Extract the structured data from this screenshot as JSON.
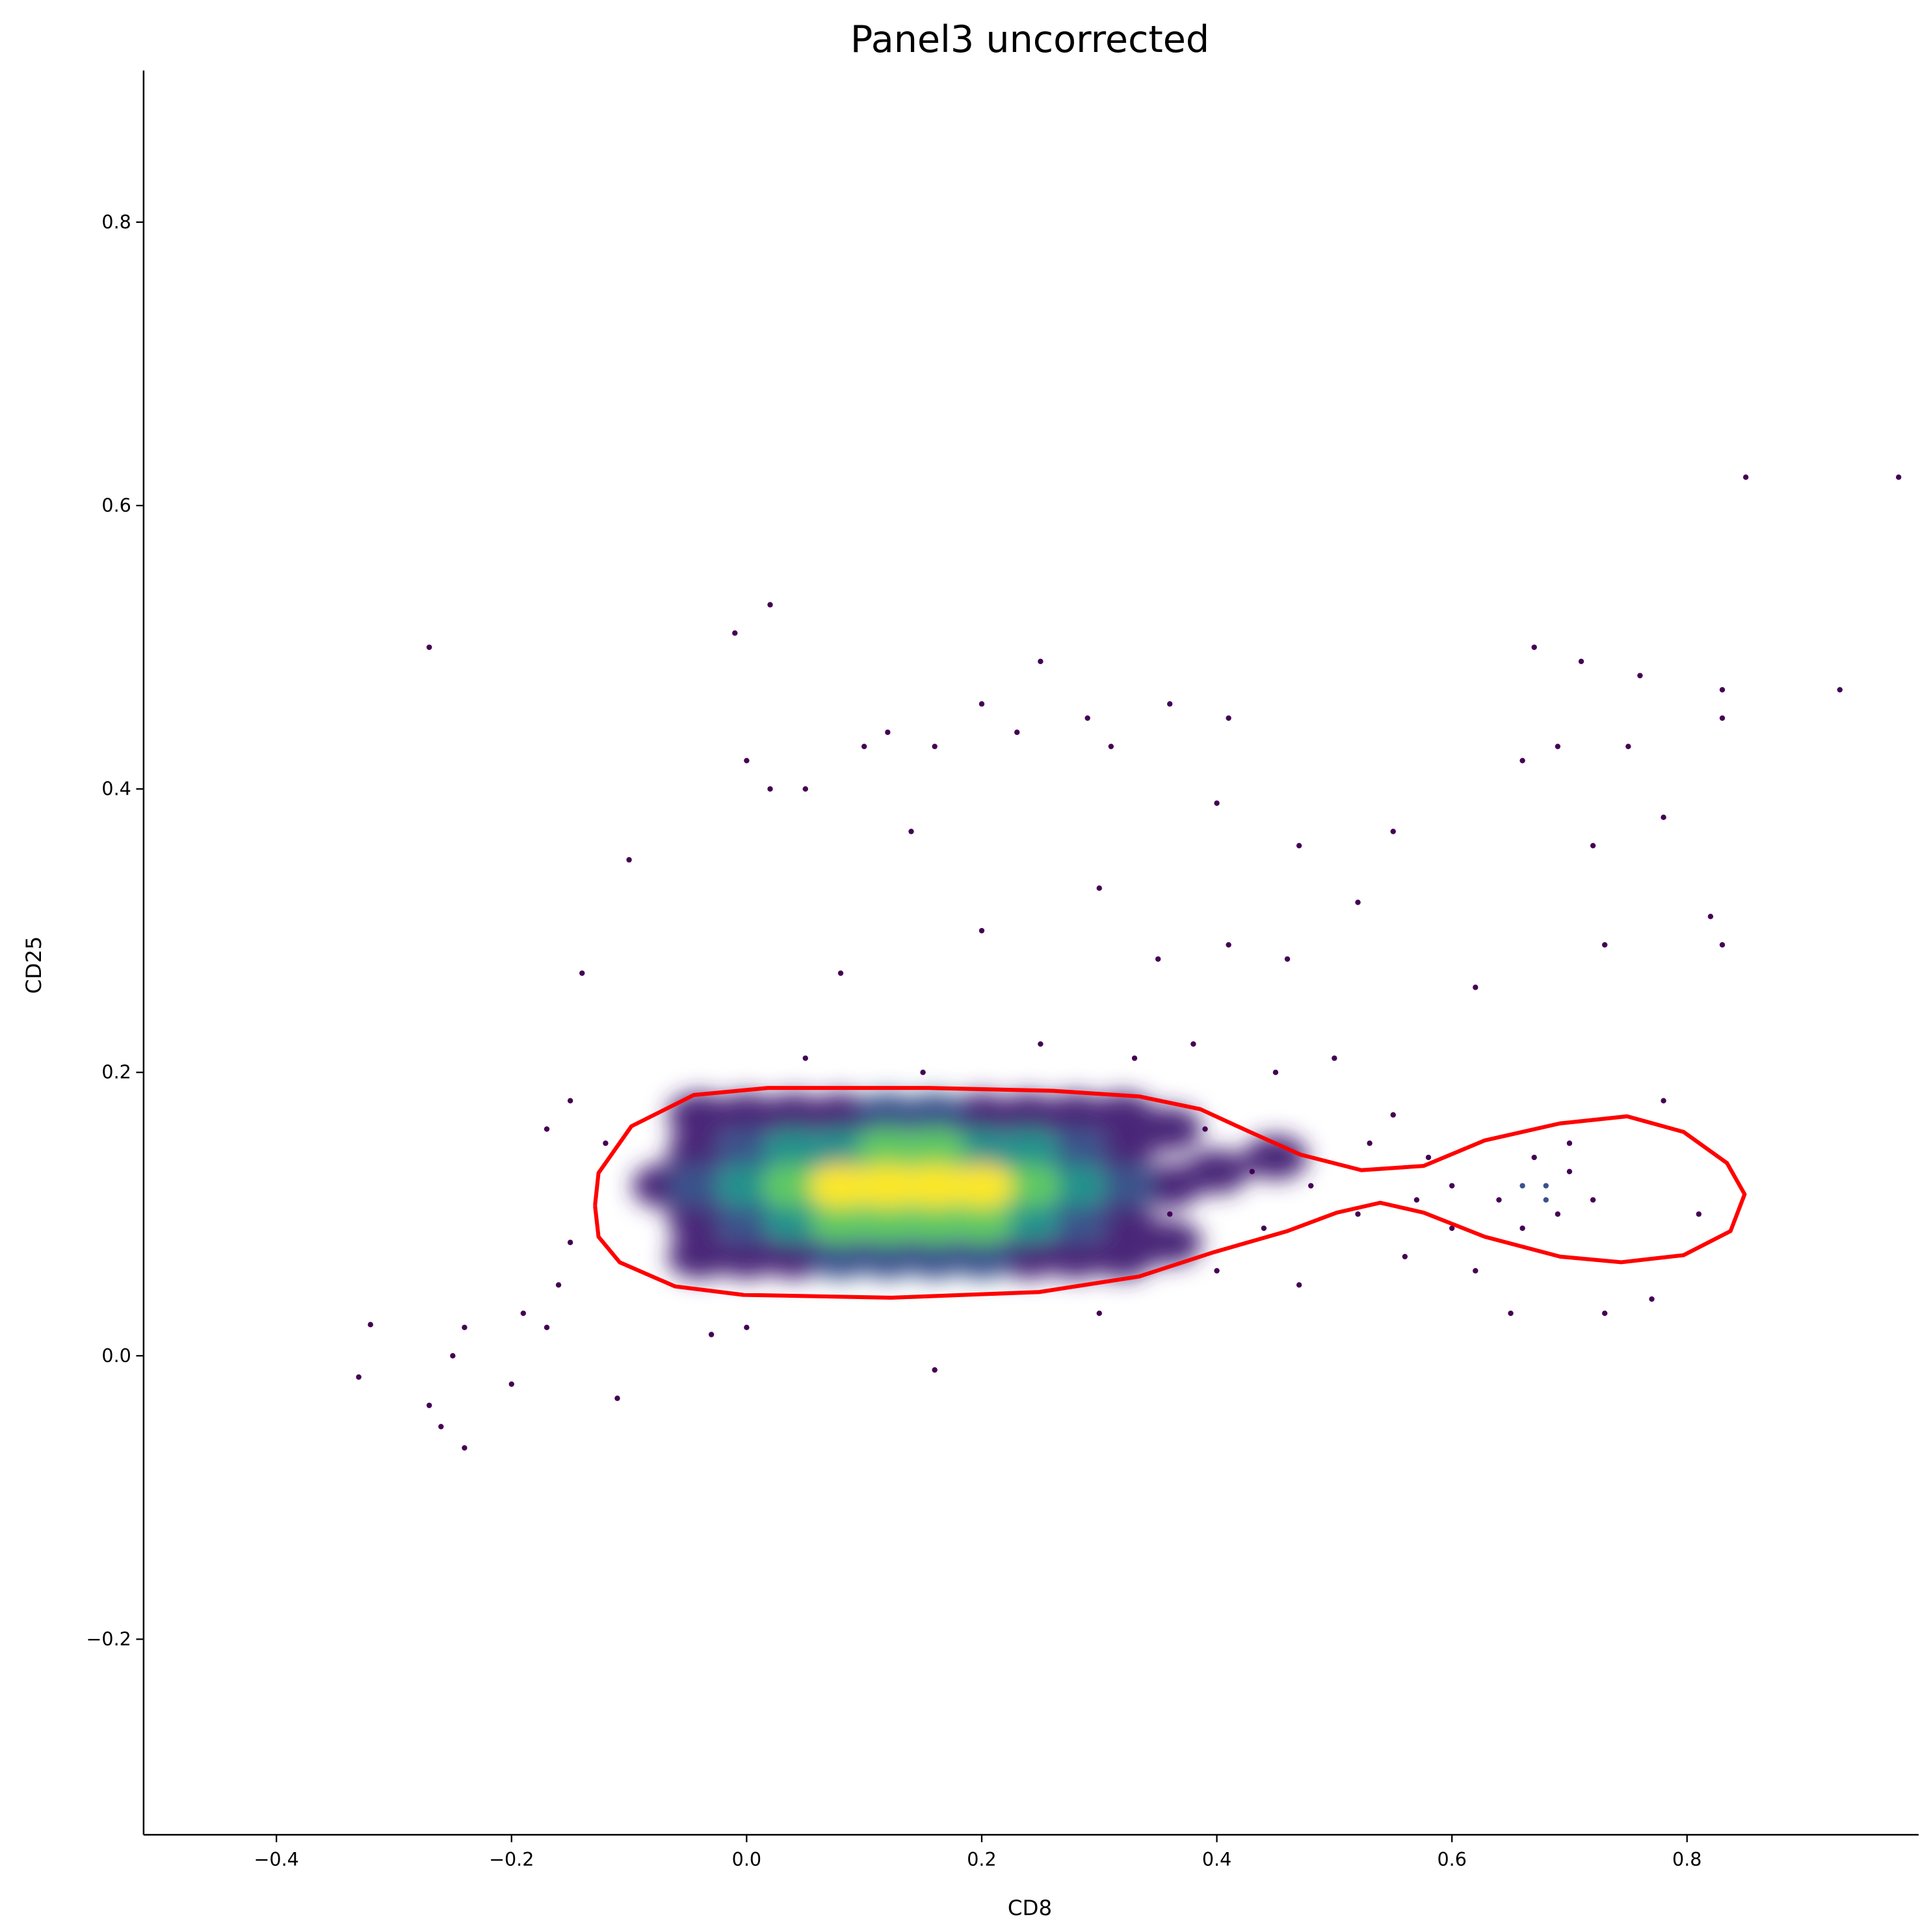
{
  "chart_data": {
    "type": "scatter",
    "title": "Panel3 uncorrected",
    "x_label": "CD8",
    "y_label": "CD25",
    "xlim": [
      -0.513,
      0.997
    ],
    "ylim": [
      -0.338,
      0.907
    ],
    "xticks": [
      {
        "value": -0.4,
        "label": "−0.4"
      },
      {
        "value": -0.2,
        "label": "−0.2"
      },
      {
        "value": 0,
        "label": "0.0"
      },
      0.2,
      0.4,
      0.6,
      0.8
    ],
    "yticks": [
      {
        "value": -0.2,
        "label": "−0.2"
      },
      {
        "value": 0,
        "label": "0.0"
      },
      0.2,
      0.4,
      0.6,
      0.8
    ],
    "points": [
      {
        "x": -0.27,
        "y": 0.5,
        "color": "#440154"
      },
      {
        "x": -0.01,
        "y": 0.51,
        "color": "#440154"
      },
      {
        "x": 0.02,
        "y": 0.53,
        "color": "#440154"
      },
      {
        "x": 0.25,
        "y": 0.49,
        "color": "#440154"
      },
      {
        "x": 0.85,
        "y": 0.62,
        "color": "#440154"
      },
      {
        "x": 0.98,
        "y": 0.62,
        "color": "#440154"
      },
      {
        "x": 0.93,
        "y": 0.47,
        "color": "#440154"
      },
      {
        "x": 0.83,
        "y": 0.47,
        "color": "#440154"
      },
      {
        "x": 0.83,
        "y": 0.45,
        "color": "#440154"
      },
      {
        "x": 0.67,
        "y": 0.5,
        "color": "#440154"
      },
      {
        "x": 0.71,
        "y": 0.49,
        "color": "#440154"
      },
      {
        "x": 0.76,
        "y": 0.48,
        "color": "#440154"
      },
      {
        "x": 0.2,
        "y": 0.46,
        "color": "#440154"
      },
      {
        "x": 0.36,
        "y": 0.46,
        "color": "#440154"
      },
      {
        "x": 0.41,
        "y": 0.45,
        "color": "#440154"
      },
      {
        "x": 0.29,
        "y": 0.45,
        "color": "#440154"
      },
      {
        "x": -0.1,
        "y": 0.35,
        "color": "#440154"
      },
      {
        "x": 0,
        "y": 0.42,
        "color": "#440154"
      },
      {
        "x": 0.02,
        "y": 0.4,
        "color": "#440154"
      },
      {
        "x": 0.05,
        "y": 0.4,
        "color": "#440154"
      },
      {
        "x": 0.1,
        "y": 0.43,
        "color": "#440154"
      },
      {
        "x": 0.12,
        "y": 0.44,
        "color": "#440154"
      },
      {
        "x": 0.16,
        "y": 0.43,
        "color": "#440154"
      },
      {
        "x": 0.23,
        "y": 0.44,
        "color": "#440154"
      },
      {
        "x": 0.31,
        "y": 0.43,
        "color": "#440154"
      },
      {
        "x": 0.4,
        "y": 0.39,
        "color": "#440154"
      },
      {
        "x": 0.47,
        "y": 0.36,
        "color": "#440154"
      },
      {
        "x": 0.55,
        "y": 0.37,
        "color": "#440154"
      },
      {
        "x": 0.66,
        "y": 0.42,
        "color": "#440154"
      },
      {
        "x": 0.69,
        "y": 0.43,
        "color": "#440154"
      },
      {
        "x": 0.75,
        "y": 0.43,
        "color": "#440154"
      },
      {
        "x": 0.78,
        "y": 0.38,
        "color": "#440154"
      },
      {
        "x": 0.72,
        "y": 0.36,
        "color": "#440154"
      },
      {
        "x": 0.14,
        "y": 0.37,
        "color": "#440154"
      },
      {
        "x": 0.3,
        "y": 0.33,
        "color": "#440154"
      },
      {
        "x": 0.08,
        "y": 0.27,
        "color": "#440154"
      },
      {
        "x": 0.2,
        "y": 0.3,
        "color": "#440154"
      },
      {
        "x": 0.35,
        "y": 0.28,
        "color": "#440154"
      },
      {
        "x": 0.41,
        "y": 0.29,
        "color": "#440154"
      },
      {
        "x": -0.14,
        "y": 0.27,
        "color": "#440154"
      },
      {
        "x": 0.62,
        "y": 0.26,
        "color": "#440154"
      },
      {
        "x": 0.73,
        "y": 0.29,
        "color": "#440154"
      },
      {
        "x": 0.83,
        "y": 0.29,
        "color": "#440154"
      },
      {
        "x": 0.82,
        "y": 0.31,
        "color": "#440154"
      },
      {
        "x": 0.52,
        "y": 0.32,
        "color": "#440154"
      },
      {
        "x": 0.46,
        "y": 0.28,
        "color": "#440154"
      },
      {
        "x": -0.33,
        "y": -0.015,
        "color": "#440154"
      },
      {
        "x": -0.32,
        "y": 0.022,
        "color": "#440154"
      },
      {
        "x": -0.27,
        "y": -0.035,
        "color": "#440154"
      },
      {
        "x": -0.26,
        "y": -0.05,
        "color": "#440154"
      },
      {
        "x": -0.24,
        "y": -0.065,
        "color": "#440154"
      },
      {
        "x": -0.25,
        "y": 0,
        "color": "#440154"
      },
      {
        "x": -0.24,
        "y": 0.02,
        "color": "#440154"
      },
      {
        "x": -0.2,
        "y": -0.02,
        "color": "#440154"
      },
      {
        "x": -0.19,
        "y": 0.03,
        "color": "#440154"
      },
      {
        "x": -0.17,
        "y": 0.02,
        "color": "#440154"
      },
      {
        "x": -0.16,
        "y": 0.05,
        "color": "#440154"
      },
      {
        "x": -0.15,
        "y": 0.08,
        "color": "#440154"
      },
      {
        "x": -0.11,
        "y": -0.03,
        "color": "#440154"
      },
      {
        "x": 0.16,
        "y": -0.01,
        "color": "#440154"
      },
      {
        "x": -0.17,
        "y": 0.16,
        "color": "#440154"
      },
      {
        "x": -0.15,
        "y": 0.18,
        "color": "#440154"
      },
      {
        "x": -0.12,
        "y": 0.15,
        "color": "#440154"
      },
      {
        "x": 0.05,
        "y": 0.21,
        "color": "#440154"
      },
      {
        "x": 0.15,
        "y": 0.2,
        "color": "#440154"
      },
      {
        "x": 0.25,
        "y": 0.22,
        "color": "#440154"
      },
      {
        "x": 0.33,
        "y": 0.21,
        "color": "#440154"
      },
      {
        "x": 0.38,
        "y": 0.22,
        "color": "#440154"
      },
      {
        "x": 0.45,
        "y": 0.2,
        "color": "#440154"
      },
      {
        "x": 0.5,
        "y": 0.21,
        "color": "#440154"
      },
      {
        "x": 0.55,
        "y": 0.17,
        "color": "#440154"
      },
      {
        "x": 0.58,
        "y": 0.14,
        "color": "#440154"
      },
      {
        "x": 0.6,
        "y": 0.12,
        "color": "#440154"
      },
      {
        "x": 0.52,
        "y": 0.1,
        "color": "#440154"
      },
      {
        "x": 0.56,
        "y": 0.07,
        "color": "#440154"
      },
      {
        "x": 0.62,
        "y": 0.06,
        "color": "#440154"
      },
      {
        "x": 0.47,
        "y": 0.05,
        "color": "#440154"
      },
      {
        "x": 0.4,
        "y": 0.06,
        "color": "#440154"
      },
      {
        "x": 0.3,
        "y": 0.03,
        "color": "#440154"
      },
      {
        "x": 0,
        "y": 0.02,
        "color": "#440154"
      },
      {
        "x": -0.03,
        "y": 0.015,
        "color": "#440154"
      },
      {
        "x": 0.43,
        "y": 0.13,
        "color": "#440154"
      },
      {
        "x": 0.48,
        "y": 0.12,
        "color": "#440154"
      },
      {
        "x": 0.53,
        "y": 0.15,
        "color": "#440154"
      },
      {
        "x": 0.57,
        "y": 0.11,
        "color": "#440154"
      },
      {
        "x": 0.6,
        "y": 0.09,
        "color": "#440154"
      },
      {
        "x": 0.65,
        "y": 0.03,
        "color": "#440154"
      },
      {
        "x": 0.73,
        "y": 0.03,
        "color": "#440154"
      },
      {
        "x": 0.77,
        "y": 0.04,
        "color": "#440154"
      },
      {
        "x": 0.81,
        "y": 0.1,
        "color": "#440154"
      },
      {
        "x": 0.78,
        "y": 0.18,
        "color": "#440154"
      },
      {
        "x": 0.44,
        "y": 0.09,
        "color": "#440154"
      },
      {
        "x": 0.36,
        "y": 0.1,
        "color": "#440154"
      },
      {
        "x": 0.39,
        "y": 0.16,
        "color": "#440154"
      },
      {
        "x": 0.66,
        "y": 0.12,
        "color": "#3b528b"
      },
      {
        "x": 0.68,
        "y": 0.11,
        "color": "#3b528b"
      },
      {
        "x": 0.7,
        "y": 0.13,
        "color": "#440154"
      },
      {
        "x": 0.67,
        "y": 0.14,
        "color": "#440154"
      },
      {
        "x": 0.69,
        "y": 0.1,
        "color": "#440154"
      },
      {
        "x": 0.64,
        "y": 0.11,
        "color": "#440154"
      },
      {
        "x": 0.72,
        "y": 0.11,
        "color": "#440154"
      },
      {
        "x": 0.66,
        "y": 0.09,
        "color": "#440154"
      },
      {
        "x": 0.7,
        "y": 0.15,
        "color": "#440154"
      },
      {
        "x": 0.68,
        "y": 0.12,
        "color": "#3b528b"
      }
    ],
    "core_points": [
      {
        "x": -0.07,
        "y": 0.12,
        "color": "#482878"
      },
      {
        "x": 0.36,
        "y": 0.12,
        "color": "#482878"
      },
      {
        "x": 0.4,
        "y": 0.13,
        "color": "#482878"
      },
      {
        "x": 0.36,
        "y": 0.08,
        "color": "#482878"
      },
      {
        "x": 0.36,
        "y": 0.16,
        "color": "#482878"
      },
      {
        "x": 0.45,
        "y": 0.14,
        "color": "#482878"
      },
      {
        "x": -0.04,
        "y": 0.07,
        "color": "#482878"
      },
      {
        "x": 0,
        "y": 0.07,
        "color": "#482878"
      },
      {
        "x": 0.04,
        "y": 0.07,
        "color": "#482878"
      },
      {
        "x": 0.24,
        "y": 0.07,
        "color": "#482878"
      },
      {
        "x": 0.28,
        "y": 0.07,
        "color": "#482878"
      },
      {
        "x": 0.32,
        "y": 0.07,
        "color": "#482878"
      },
      {
        "x": -0.04,
        "y": 0.17,
        "color": "#482878"
      },
      {
        "x": 0,
        "y": 0.17,
        "color": "#482878"
      },
      {
        "x": 0.04,
        "y": 0.17,
        "color": "#482878"
      },
      {
        "x": 0.08,
        "y": 0.17,
        "color": "#482878"
      },
      {
        "x": 0.2,
        "y": 0.17,
        "color": "#482878"
      },
      {
        "x": 0.24,
        "y": 0.17,
        "color": "#482878"
      },
      {
        "x": 0.28,
        "y": 0.17,
        "color": "#482878"
      },
      {
        "x": 0.32,
        "y": 0.17,
        "color": "#482878"
      },
      {
        "x": -0.04,
        "y": 0.095,
        "color": "#482878"
      },
      {
        "x": 0.32,
        "y": 0.095,
        "color": "#482878"
      },
      {
        "x": -0.04,
        "y": 0.145,
        "color": "#482878"
      },
      {
        "x": 0.32,
        "y": 0.145,
        "color": "#482878"
      },
      {
        "x": 0.08,
        "y": 0.07,
        "color": "#3b528b"
      },
      {
        "x": 0.12,
        "y": 0.07,
        "color": "#3b528b"
      },
      {
        "x": 0.16,
        "y": 0.07,
        "color": "#3b528b"
      },
      {
        "x": 0.2,
        "y": 0.07,
        "color": "#3b528b"
      },
      {
        "x": 0.12,
        "y": 0.17,
        "color": "#3b528b"
      },
      {
        "x": 0.16,
        "y": 0.17,
        "color": "#3b528b"
      },
      {
        "x": 0,
        "y": 0.095,
        "color": "#3b528b"
      },
      {
        "x": 0.28,
        "y": 0.095,
        "color": "#3b528b"
      },
      {
        "x": -0.04,
        "y": 0.12,
        "color": "#3b528b"
      },
      {
        "x": 0.32,
        "y": 0.12,
        "color": "#3b528b"
      },
      {
        "x": 0,
        "y": 0.145,
        "color": "#3b528b"
      },
      {
        "x": 0.28,
        "y": 0.145,
        "color": "#3b528b"
      },
      {
        "x": 0.04,
        "y": 0.095,
        "color": "#21918c"
      },
      {
        "x": 0.24,
        "y": 0.095,
        "color": "#21918c"
      },
      {
        "x": 0,
        "y": 0.12,
        "color": "#21918c"
      },
      {
        "x": 0.28,
        "y": 0.12,
        "color": "#21918c"
      },
      {
        "x": 0.04,
        "y": 0.145,
        "color": "#21918c"
      },
      {
        "x": 0.08,
        "y": 0.145,
        "color": "#21918c"
      },
      {
        "x": 0.2,
        "y": 0.145,
        "color": "#21918c"
      },
      {
        "x": 0.24,
        "y": 0.145,
        "color": "#21918c"
      },
      {
        "x": 0.08,
        "y": 0.095,
        "color": "#5ec962"
      },
      {
        "x": 0.12,
        "y": 0.095,
        "color": "#5ec962"
      },
      {
        "x": 0.16,
        "y": 0.095,
        "color": "#5ec962"
      },
      {
        "x": 0.2,
        "y": 0.095,
        "color": "#5ec962"
      },
      {
        "x": 0.04,
        "y": 0.12,
        "color": "#5ec962"
      },
      {
        "x": 0.24,
        "y": 0.12,
        "color": "#5ec962"
      },
      {
        "x": 0.12,
        "y": 0.145,
        "color": "#5ec962"
      },
      {
        "x": 0.16,
        "y": 0.145,
        "color": "#5ec962"
      },
      {
        "x": 0.08,
        "y": 0.12,
        "color": "#fde725"
      },
      {
        "x": 0.12,
        "y": 0.12,
        "color": "#fde725"
      },
      {
        "x": 0.16,
        "y": 0.12,
        "color": "#fde725"
      },
      {
        "x": 0.2,
        "y": 0.12,
        "color": "#fde725"
      }
    ],
    "contour": {
      "color": "#ff0000",
      "points": [
        {
          "x": -0.129,
          "y": 0.106
        },
        {
          "x": -0.126,
          "y": 0.129
        },
        {
          "x": -0.098,
          "y": 0.162
        },
        {
          "x": -0.045,
          "y": 0.184
        },
        {
          "x": 0.018,
          "y": 0.189
        },
        {
          "x": 0.155,
          "y": 0.189
        },
        {
          "x": 0.26,
          "y": 0.187
        },
        {
          "x": 0.334,
          "y": 0.183
        },
        {
          "x": 0.386,
          "y": 0.174
        },
        {
          "x": 0.428,
          "y": 0.158
        },
        {
          "x": 0.471,
          "y": 0.142
        },
        {
          "x": 0.523,
          "y": 0.131
        },
        {
          "x": 0.576,
          "y": 0.134
        },
        {
          "x": 0.628,
          "y": 0.152
        },
        {
          "x": 0.692,
          "y": 0.164
        },
        {
          "x": 0.749,
          "y": 0.169
        },
        {
          "x": 0.797,
          "y": 0.158
        },
        {
          "x": 0.834,
          "y": 0.136
        },
        {
          "x": 0.849,
          "y": 0.114
        },
        {
          "x": 0.837,
          "y": 0.088
        },
        {
          "x": 0.797,
          "y": 0.071
        },
        {
          "x": 0.744,
          "y": 0.066
        },
        {
          "x": 0.692,
          "y": 0.07
        },
        {
          "x": 0.628,
          "y": 0.084
        },
        {
          "x": 0.576,
          "y": 0.101
        },
        {
          "x": 0.539,
          "y": 0.108
        },
        {
          "x": 0.502,
          "y": 0.101
        },
        {
          "x": 0.46,
          "y": 0.088
        },
        {
          "x": 0.397,
          "y": 0.073
        },
        {
          "x": 0.334,
          "y": 0.056
        },
        {
          "x": 0.249,
          "y": 0.045
        },
        {
          "x": 0.123,
          "y": 0.041
        },
        {
          "x": -0.003,
          "y": 0.043
        },
        {
          "x": -0.061,
          "y": 0.049
        },
        {
          "x": -0.108,
          "y": 0.066
        },
        {
          "x": -0.126,
          "y": 0.084
        },
        {
          "x": -0.129,
          "y": 0.106
        }
      ]
    }
  }
}
